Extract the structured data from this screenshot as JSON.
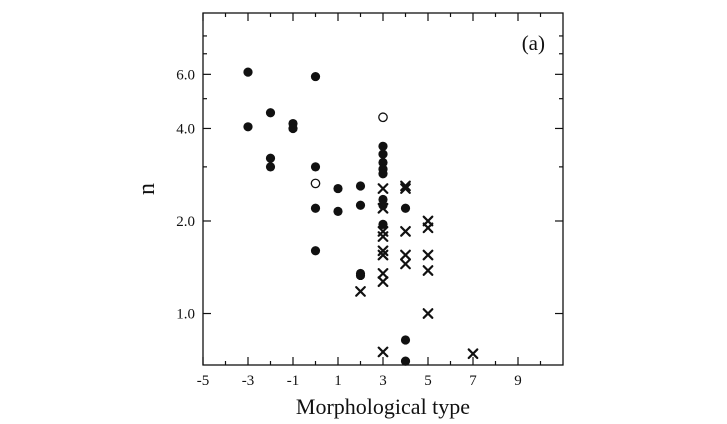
{
  "chart_data": {
    "type": "scatter",
    "title": "",
    "panel_label": "(a)",
    "xlabel": "Morphological type",
    "ylabel": "n",
    "xlim": [
      -5,
      11
    ],
    "ylim": [
      0.68,
      9.5
    ],
    "y_scale": "log",
    "x_ticks": [
      -5,
      -3,
      -1,
      1,
      3,
      5,
      7,
      9
    ],
    "x_tick_labels": [
      "-5",
      "-3",
      "-1",
      "1",
      "3",
      "5",
      "7",
      "9"
    ],
    "x_minor_ticks": [
      -4,
      -2,
      0,
      2,
      4,
      6,
      8,
      10
    ],
    "y_ticks": [
      1.0,
      2.0,
      4.0,
      6.0
    ],
    "y_tick_labels": [
      "1.0",
      "2.0",
      "4.0",
      "6.0"
    ],
    "y_minor_ticks": [
      3.0,
      5.0,
      7.0,
      8.0
    ],
    "grid": false,
    "series": [
      {
        "marker": "filled-circle",
        "color": "#111111",
        "points": [
          {
            "x": -3,
            "y": 6.1
          },
          {
            "x": -3,
            "y": 4.05
          },
          {
            "x": -2,
            "y": 4.5
          },
          {
            "x": -2,
            "y": 3.2
          },
          {
            "x": -2,
            "y": 3.0
          },
          {
            "x": -1,
            "y": 4.15
          },
          {
            "x": -1,
            "y": 4.0
          },
          {
            "x": 0,
            "y": 5.9
          },
          {
            "x": 0,
            "y": 3.0
          },
          {
            "x": 0,
            "y": 2.2
          },
          {
            "x": 0,
            "y": 1.6
          },
          {
            "x": 1,
            "y": 2.55
          },
          {
            "x": 1,
            "y": 2.15
          },
          {
            "x": 2,
            "y": 2.6
          },
          {
            "x": 2,
            "y": 2.25
          },
          {
            "x": 2,
            "y": 1.35
          },
          {
            "x": 2,
            "y": 1.33
          },
          {
            "x": 3,
            "y": 3.5
          },
          {
            "x": 3,
            "y": 3.3
          },
          {
            "x": 3,
            "y": 3.1
          },
          {
            "x": 3,
            "y": 2.95
          },
          {
            "x": 3,
            "y": 2.85
          },
          {
            "x": 3,
            "y": 2.35
          },
          {
            "x": 3,
            "y": 2.25
          },
          {
            "x": 3,
            "y": 1.95
          },
          {
            "x": 4,
            "y": 2.2
          },
          {
            "x": 4,
            "y": 0.82
          },
          {
            "x": 4,
            "y": 0.7
          }
        ]
      },
      {
        "marker": "open-circle",
        "color": "#111111",
        "points": [
          {
            "x": 3,
            "y": 4.35
          },
          {
            "x": 0,
            "y": 2.65
          }
        ]
      },
      {
        "marker": "cross",
        "color": "#111111",
        "points": [
          {
            "x": 2,
            "y": 1.18
          },
          {
            "x": 3,
            "y": 2.55
          },
          {
            "x": 3,
            "y": 2.2
          },
          {
            "x": 3,
            "y": 1.85
          },
          {
            "x": 3,
            "y": 1.78
          },
          {
            "x": 3,
            "y": 1.6
          },
          {
            "x": 3,
            "y": 1.55
          },
          {
            "x": 3,
            "y": 1.35
          },
          {
            "x": 3,
            "y": 1.27
          },
          {
            "x": 3,
            "y": 0.75
          },
          {
            "x": 4,
            "y": 2.6
          },
          {
            "x": 4,
            "y": 2.55
          },
          {
            "x": 4,
            "y": 1.85
          },
          {
            "x": 4,
            "y": 1.55
          },
          {
            "x": 4,
            "y": 1.45
          },
          {
            "x": 5,
            "y": 2.0
          },
          {
            "x": 5,
            "y": 1.9
          },
          {
            "x": 5,
            "y": 1.55
          },
          {
            "x": 5,
            "y": 1.38
          },
          {
            "x": 5,
            "y": 1.0
          },
          {
            "x": 7,
            "y": 0.74
          }
        ]
      }
    ]
  }
}
